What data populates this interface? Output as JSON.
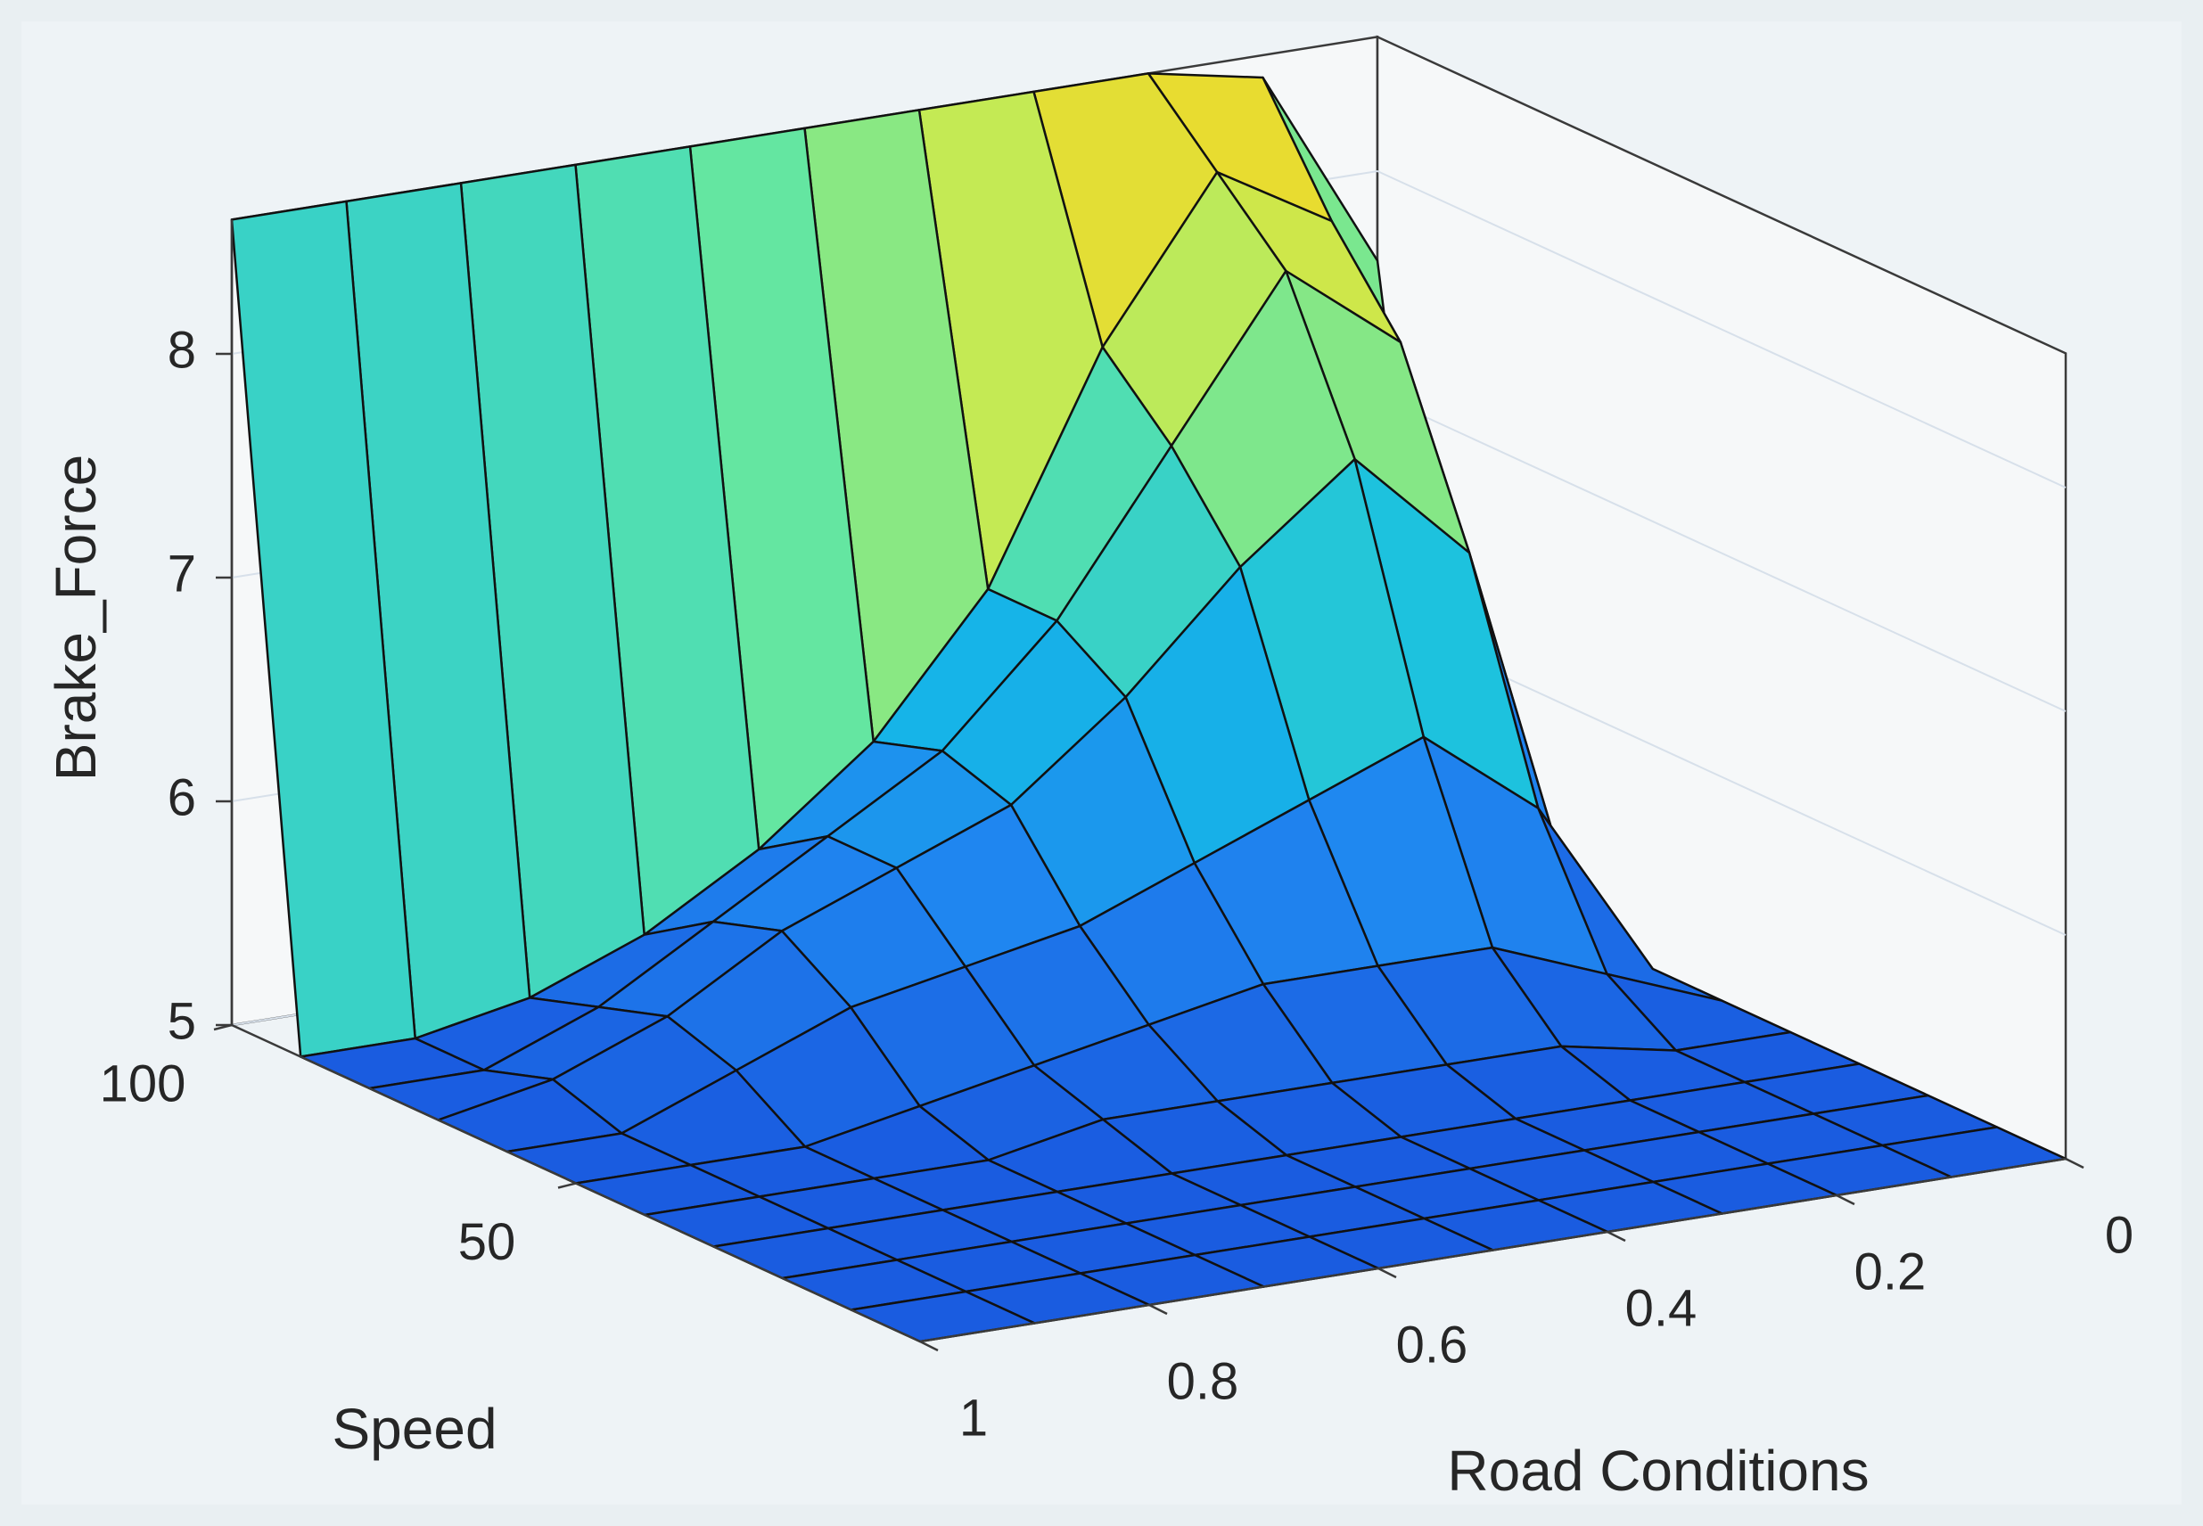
{
  "chart_data": {
    "type": "surface",
    "xlabel": "Road  Conditions",
    "ylabel": "Speed",
    "zlabel": "Brake_Force",
    "x": [
      0,
      0.1,
      0.2,
      0.3,
      0.4,
      0.5,
      0.6,
      0.7,
      0.8,
      0.9,
      1
    ],
    "y": [
      0,
      10,
      20,
      30,
      40,
      50,
      60,
      70,
      80,
      90,
      100
    ],
    "z": [
      [
        5.0,
        5.0,
        5.0,
        5.0,
        5.0,
        5.0,
        5.0,
        5.0,
        5.0,
        5.0,
        5.0
      ],
      [
        5.0,
        5.0,
        5.0,
        5.0,
        5.0,
        5.0,
        5.0,
        5.0,
        5.0,
        5.0,
        5.0
      ],
      [
        5.0,
        5.0,
        5.0,
        5.0,
        5.0,
        5.0,
        5.0,
        5.0,
        5.0,
        5.0,
        5.0
      ],
      [
        5.0,
        5.0,
        5.0,
        5.0,
        5.0,
        5.0,
        5.0,
        5.0,
        5.0,
        5.0,
        5.0
      ],
      [
        5.0,
        5.0,
        5.1,
        5.1,
        5.1,
        5.1,
        5.1,
        5.0,
        5.0,
        5.0,
        5.0
      ],
      [
        5.0,
        5.2,
        5.4,
        5.4,
        5.4,
        5.3,
        5.2,
        5.1,
        5.0,
        5.0,
        5.0
      ],
      [
        5.0,
        5.8,
        6.2,
        6.0,
        5.8,
        5.6,
        5.5,
        5.4,
        5.2,
        5.0,
        5.0
      ],
      [
        5.0,
        6.8,
        7.3,
        6.9,
        6.4,
        6.0,
        5.8,
        5.6,
        5.3,
        5.1,
        5.0
      ],
      [
        5.1,
        7.6,
        8.0,
        7.3,
        6.6,
        6.1,
        5.8,
        5.5,
        5.2,
        5.0,
        5.0
      ],
      [
        5.3,
        8.0,
        8.3,
        7.6,
        6.6,
        6.0,
        5.6,
        5.3,
        5.1,
        5.0,
        5.0
      ],
      [
        7.6,
        8.5,
        8.6,
        8.6,
        8.6,
        8.6,
        8.6,
        8.6,
        8.6,
        8.6,
        8.6
      ]
    ],
    "xlim": [
      0,
      1
    ],
    "ylim": [
      0,
      100
    ],
    "zlim": [
      5,
      8.6
    ],
    "xticks": [
      0,
      0.2,
      0.4,
      0.6,
      0.8,
      1
    ],
    "yticks": [
      50,
      100
    ],
    "zticks": [
      5,
      6,
      7,
      8
    ],
    "grid": true,
    "colormap": [
      "#1a5ce0",
      "#1f86f0",
      "#14bde6",
      "#5ee6a6",
      "#c8ea50",
      "#f9d41f"
    ]
  }
}
